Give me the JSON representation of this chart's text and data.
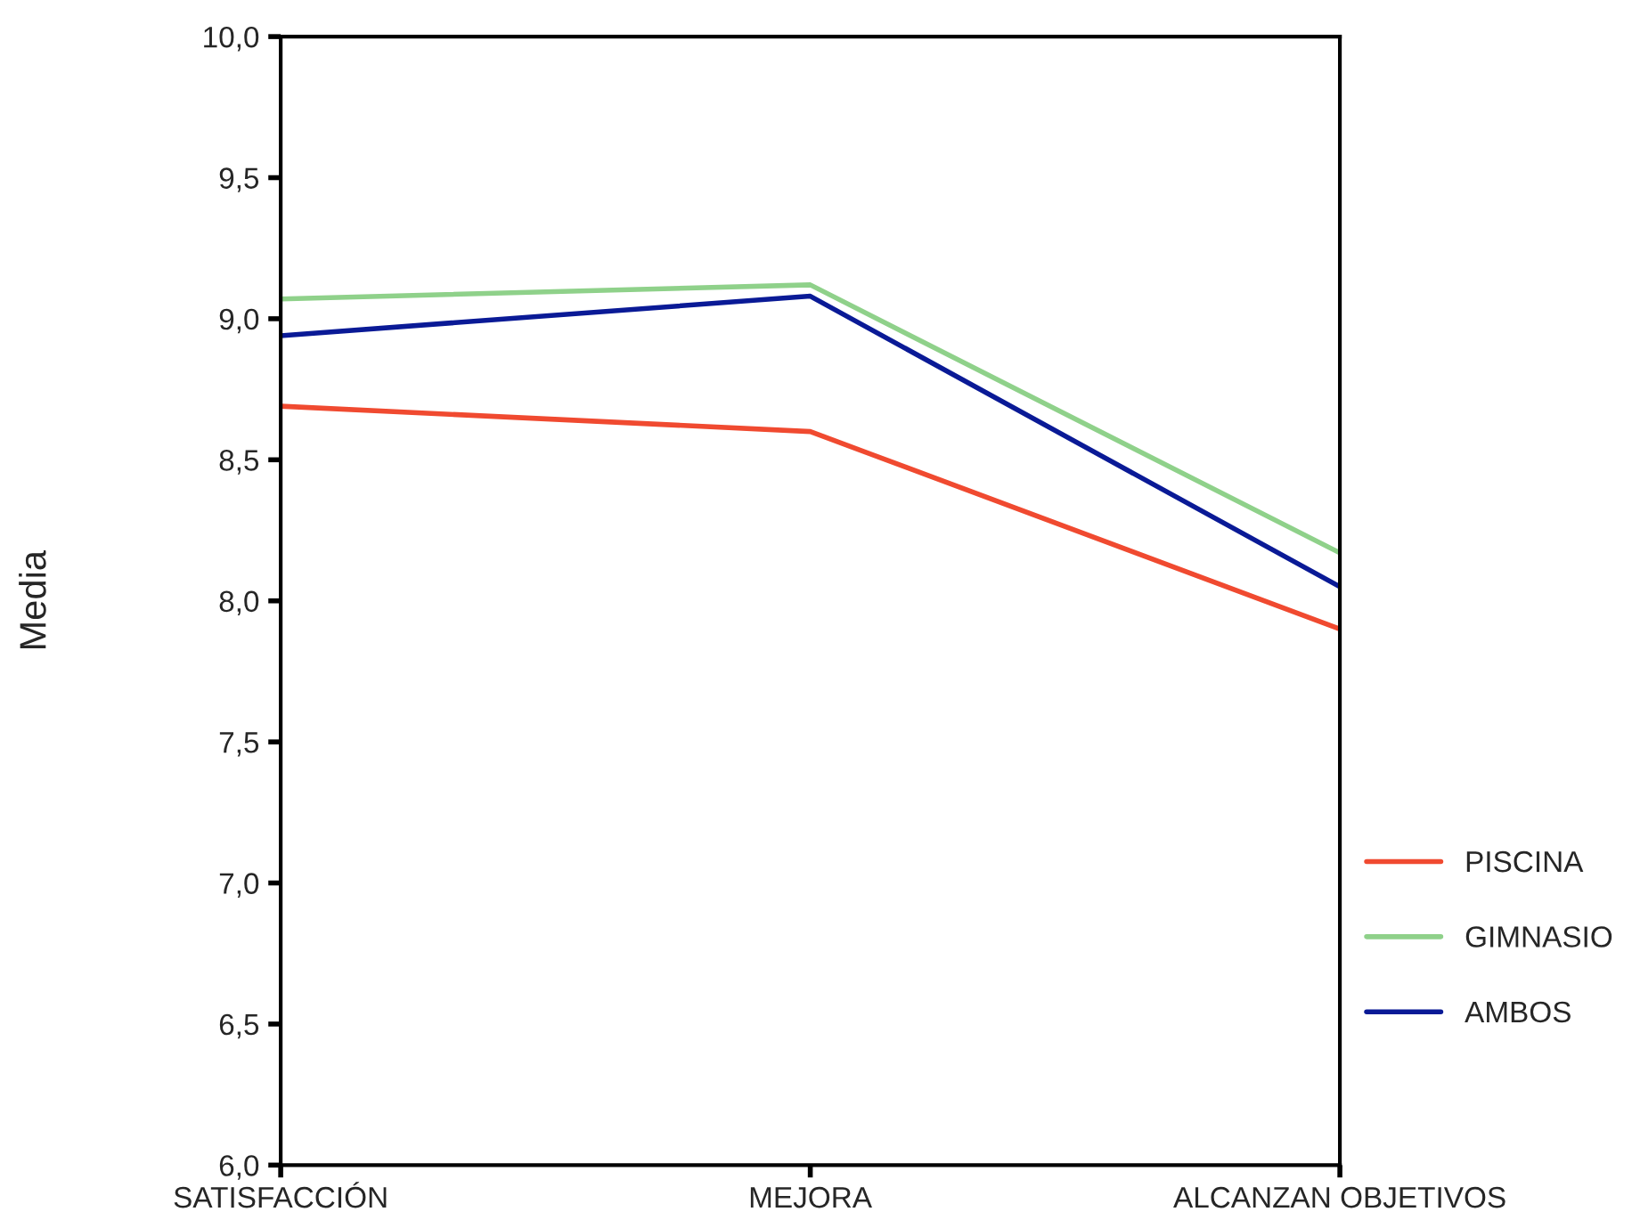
{
  "chart_data": {
    "type": "line",
    "ylabel": "Media",
    "categories": [
      "SATISFACCIÓN",
      "MEJORA",
      "ALCANZAN OBJETIVOS"
    ],
    "series": [
      {
        "name": "PISCINA",
        "color": "#f04a30",
        "values": [
          8.69,
          8.6,
          7.9
        ]
      },
      {
        "name": "GIMNASIO",
        "color": "#8fd18a",
        "values": [
          9.07,
          9.12,
          8.17
        ]
      },
      {
        "name": "AMBOS",
        "color": "#0a1a96",
        "values": [
          8.94,
          9.08,
          8.05
        ]
      }
    ],
    "ylim": [
      6,
      10
    ],
    "yticks": [
      {
        "value": 6,
        "label": "6,0"
      },
      {
        "value": 6.5,
        "label": "6,5"
      },
      {
        "value": 7,
        "label": "7,0"
      },
      {
        "value": 7.5,
        "label": "7,5"
      },
      {
        "value": 8,
        "label": "8,0"
      },
      {
        "value": 8.5,
        "label": "8,5"
      },
      {
        "value": 9,
        "label": "9,0"
      },
      {
        "value": 9.5,
        "label": "9,5"
      },
      {
        "value": 10,
        "label": "10,0"
      }
    ],
    "grid": false,
    "legend": "right",
    "marker": "none",
    "line_style": "solid"
  }
}
